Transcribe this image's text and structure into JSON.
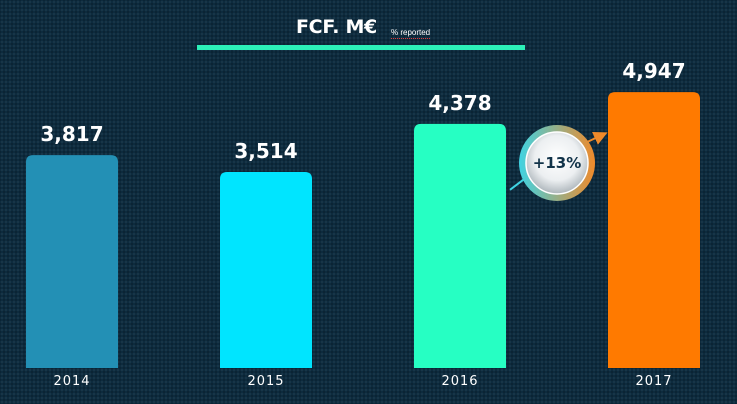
{
  "chart_data": {
    "type": "bar",
    "title": "FCF. M€",
    "subtitle": "% reported",
    "categories": [
      "2014",
      "2015",
      "2016",
      "2017"
    ],
    "values": [
      3817,
      3514,
      4378,
      4947
    ],
    "value_labels": [
      "3,817",
      "3,514",
      "4,378",
      "4,947"
    ],
    "colors": [
      "#2390b5",
      "#00e5ff",
      "#26ffc3",
      "#ff7a00"
    ],
    "ylim": [
      0,
      5200
    ],
    "xlabel": "",
    "ylabel": "",
    "grid": false,
    "legend": "none",
    "annotation": {
      "text": "+13%",
      "from": "2016",
      "to": "2017"
    }
  }
}
